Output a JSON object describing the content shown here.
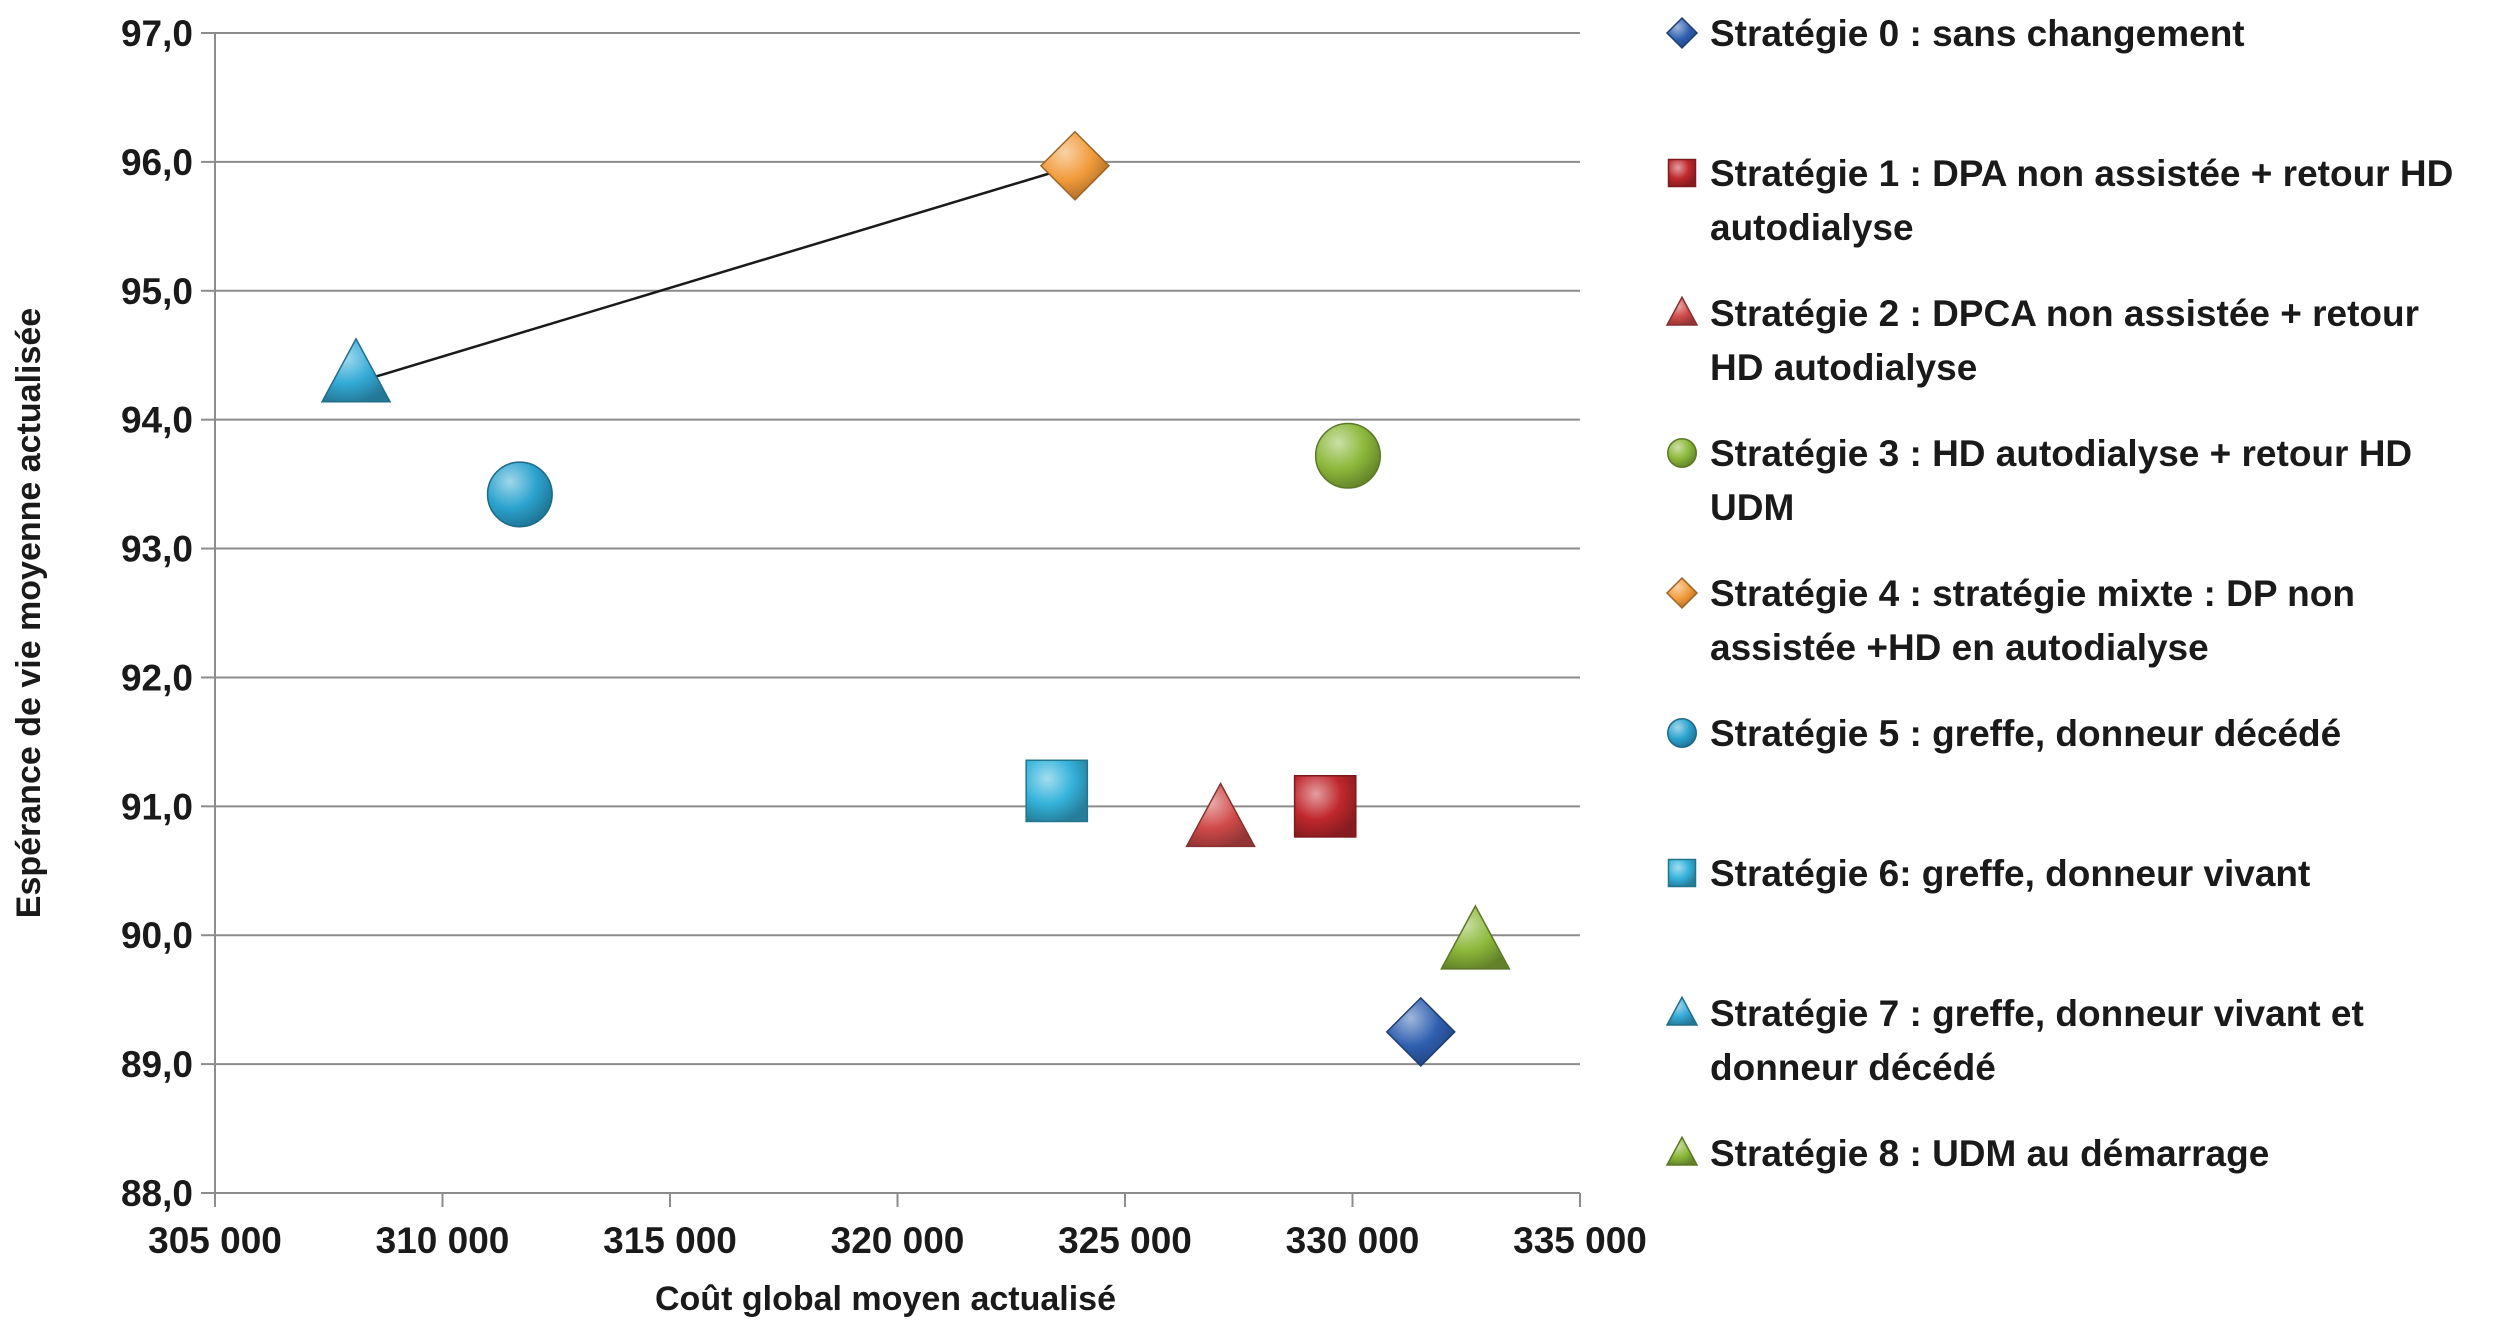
{
  "chart_data": {
    "type": "scatter",
    "xlabel": "Coût global moyen actualisé",
    "ylabel": "Espérance de vie moyenne actualisée",
    "xlim": [
      305000,
      335000
    ],
    "ylim": [
      88.0,
      97.0
    ],
    "x_ticks": [
      305000,
      310000,
      315000,
      320000,
      325000,
      330000,
      335000
    ],
    "x_tick_labels": [
      "305 000",
      "310 000",
      "315 000",
      "320 000",
      "325 000",
      "330 000",
      "335 000"
    ],
    "y_ticks": [
      88,
      89,
      90,
      91,
      92,
      93,
      94,
      95,
      96,
      97
    ],
    "y_tick_labels": [
      "88,0",
      "89,0",
      "90,0",
      "91,0",
      "92,0",
      "93,0",
      "94,0",
      "95,0",
      "96,0",
      "97,0"
    ],
    "grid": true,
    "legend_position": "right",
    "series": [
      {
        "name": "Stratégie 0 : sans changement",
        "marker": "diamond",
        "color": "#2f5fb0",
        "x": 331500,
        "y": 89.25
      },
      {
        "name": "Stratégie 1 : DPA non assistée + retour HD autodialyse",
        "marker": "square",
        "color": "#c0282d",
        "x": 329400,
        "y": 91.0
      },
      {
        "name": "Stratégie 2 : DPCA non assistée + retour HD autodialyse",
        "marker": "triangle",
        "color": "#d04a4a",
        "x": 327100,
        "y": 90.9
      },
      {
        "name": "Stratégie 3 : HD autodialyse + retour HD UDM",
        "marker": "circle",
        "color": "#8cb83a",
        "x": 329900,
        "y": 93.72
      },
      {
        "name": "Stratégie 4 : stratégie mixte : DP non assistée  +HD en autodialyse",
        "marker": "diamond",
        "color": "#f19a3a",
        "x": 323900,
        "y": 95.97
      },
      {
        "name": "Stratégie 5 : greffe, donneur décédé",
        "marker": "circle",
        "color": "#2ba3cf",
        "x": 311700,
        "y": 93.42
      },
      {
        "name": "Stratégie 6: greffe, donneur vivant",
        "marker": "square",
        "color": "#35b3db",
        "x": 323500,
        "y": 91.12
      },
      {
        "name": "Stratégie 7 : greffe, donneur vivant et donneur décédé",
        "marker": "triangle",
        "color": "#33aad6",
        "x": 308100,
        "y": 94.35
      },
      {
        "name": "Stratégie 8 : UDM au démarrage",
        "marker": "triangle",
        "color": "#8cb83a",
        "x": 332700,
        "y": 89.95
      }
    ],
    "frontier_line": {
      "from_series": 7,
      "to_series": 4
    },
    "legend_items": [
      {
        "marker": "diamond",
        "color": "#2f5fb0",
        "lines": [
          "Stratégie 0 : sans changement"
        ]
      },
      {
        "marker": "square",
        "color": "#c0282d",
        "lines": [
          "Stratégie 1 : DPA non assistée + retour HD",
          "autodialyse"
        ]
      },
      {
        "marker": "triangle",
        "color": "#d04a4a",
        "lines": [
          "Stratégie 2 : DPCA non assistée + retour",
          "HD autodialyse"
        ]
      },
      {
        "marker": "circle",
        "color": "#8cb83a",
        "lines": [
          "Stratégie 3 : HD autodialyse + retour HD",
          "UDM"
        ]
      },
      {
        "marker": "diamond",
        "color": "#f19a3a",
        "lines": [
          "Stratégie 4 : stratégie mixte : DP non",
          "assistée  +HD en autodialyse"
        ]
      },
      {
        "marker": "circle",
        "color": "#2ba3cf",
        "lines": [
          "Stratégie 5 : greffe, donneur décédé"
        ]
      },
      {
        "marker": "square",
        "color": "#35b3db",
        "lines": [
          "Stratégie 6: greffe, donneur vivant"
        ]
      },
      {
        "marker": "triangle",
        "color": "#33aad6",
        "lines": [
          "Stratégie 7 : greffe, donneur vivant et",
          "donneur décédé"
        ]
      },
      {
        "marker": "triangle",
        "color": "#8cb83a",
        "lines": [
          "Stratégie 8 : UDM au démarrage"
        ]
      }
    ]
  }
}
